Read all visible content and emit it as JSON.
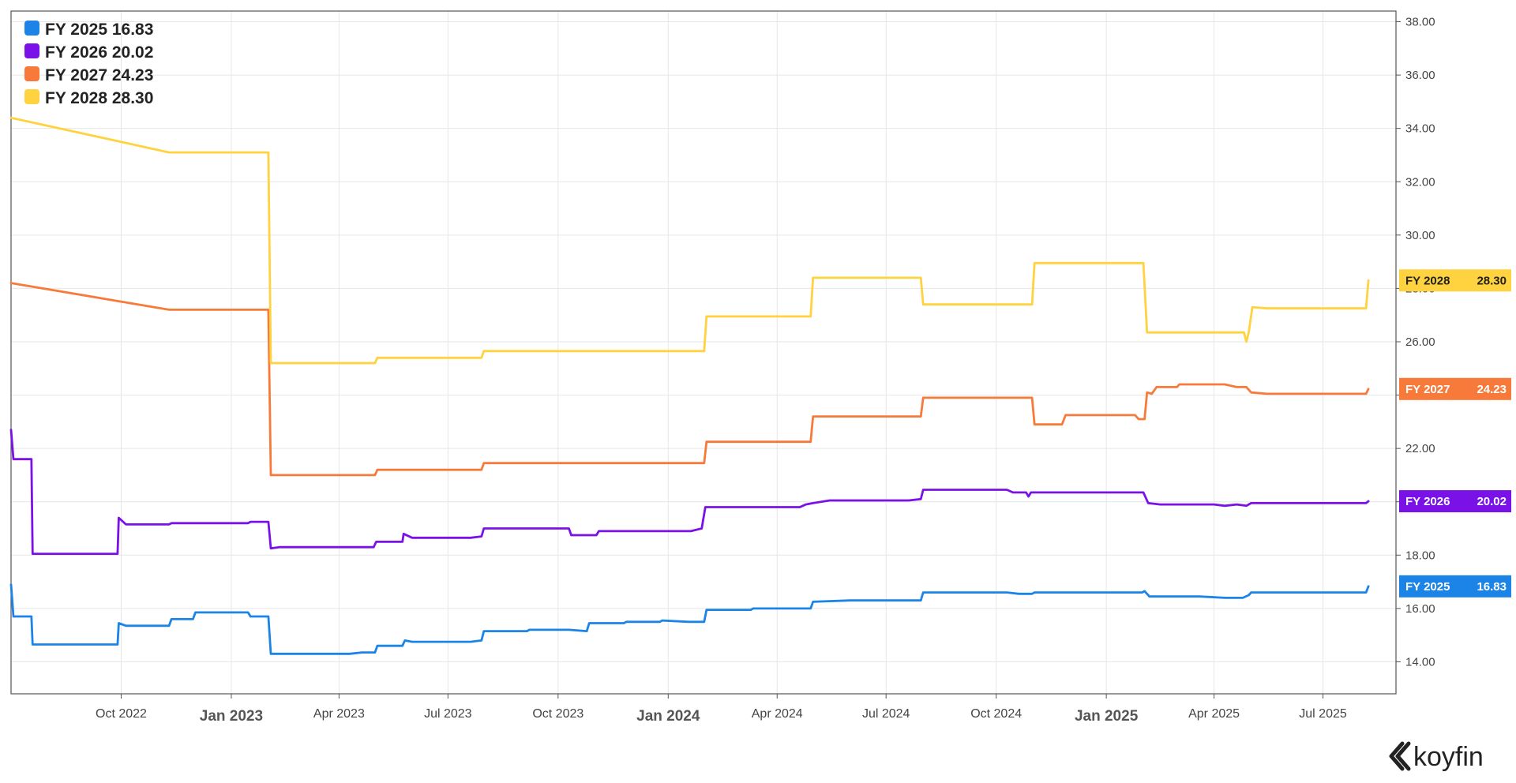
{
  "chart_data": {
    "type": "line",
    "title": "",
    "xlabel": "",
    "ylabel": "",
    "ylim": [
      12.8,
      38.4
    ],
    "xlim": [
      "2022-07-01",
      "2025-08-31"
    ],
    "yticks": [
      "14.00",
      "16.00",
      "18.00",
      "20.00",
      "22.00",
      "24.00",
      "26.00",
      "28.00",
      "30.00",
      "32.00",
      "34.00",
      "36.00",
      "38.00"
    ],
    "xticks": [
      {
        "label": "Oct 2022",
        "date": "2022-10-01",
        "major": false
      },
      {
        "label": "Jan 2023",
        "date": "2023-01-01",
        "major": true
      },
      {
        "label": "Apr 2023",
        "date": "2023-04-01",
        "major": false
      },
      {
        "label": "Jul 2023",
        "date": "2023-07-01",
        "major": false
      },
      {
        "label": "Oct 2023",
        "date": "2023-10-01",
        "major": false
      },
      {
        "label": "Jan 2024",
        "date": "2024-01-01",
        "major": true
      },
      {
        "label": "Apr 2024",
        "date": "2024-04-01",
        "major": false
      },
      {
        "label": "Jul 2024",
        "date": "2024-07-01",
        "major": false
      },
      {
        "label": "Oct 2024",
        "date": "2024-10-01",
        "major": false
      },
      {
        "label": "Jan 2025",
        "date": "2025-01-01",
        "major": true
      },
      {
        "label": "Apr 2025",
        "date": "2025-04-01",
        "major": false
      },
      {
        "label": "Jul 2025",
        "date": "2025-07-01",
        "major": false
      }
    ],
    "grid": true,
    "legend_position": "top-left",
    "series": [
      {
        "name": "FY 2025",
        "last_value": "16.83",
        "legend_label": "FY 2025 16.83",
        "badge_label": "FY 2025",
        "color": "#1b84e6",
        "points": [
          [
            "2022-07-01",
            16.9
          ],
          [
            "2022-07-03",
            15.7
          ],
          [
            "2022-07-18",
            15.7
          ],
          [
            "2022-07-19",
            14.65
          ],
          [
            "2022-09-28",
            14.65
          ],
          [
            "2022-09-29",
            15.45
          ],
          [
            "2022-10-05",
            15.35
          ],
          [
            "2022-11-10",
            15.35
          ],
          [
            "2022-11-12",
            15.6
          ],
          [
            "2022-11-30",
            15.6
          ],
          [
            "2022-12-02",
            15.85
          ],
          [
            "2023-01-15",
            15.85
          ],
          [
            "2023-01-17",
            15.7
          ],
          [
            "2023-02-01",
            15.7
          ],
          [
            "2023-02-03",
            14.3
          ],
          [
            "2023-04-10",
            14.3
          ],
          [
            "2023-04-20",
            14.35
          ],
          [
            "2023-05-01",
            14.35
          ],
          [
            "2023-05-03",
            14.6
          ],
          [
            "2023-05-24",
            14.6
          ],
          [
            "2023-05-26",
            14.8
          ],
          [
            "2023-06-01",
            14.75
          ],
          [
            "2023-07-20",
            14.75
          ],
          [
            "2023-07-29",
            14.8
          ],
          [
            "2023-07-31",
            15.15
          ],
          [
            "2023-09-05",
            15.15
          ],
          [
            "2023-09-07",
            15.2
          ],
          [
            "2023-10-10",
            15.2
          ],
          [
            "2023-10-25",
            15.15
          ],
          [
            "2023-10-27",
            15.45
          ],
          [
            "2023-11-25",
            15.45
          ],
          [
            "2023-11-27",
            15.5
          ],
          [
            "2023-12-25",
            15.5
          ],
          [
            "2023-12-27",
            15.55
          ],
          [
            "2024-01-18",
            15.5
          ],
          [
            "2024-01-31",
            15.5
          ],
          [
            "2024-02-02",
            15.95
          ],
          [
            "2024-03-10",
            15.95
          ],
          [
            "2024-03-12",
            16.0
          ],
          [
            "2024-04-29",
            16.0
          ],
          [
            "2024-05-01",
            16.25
          ],
          [
            "2024-06-01",
            16.3
          ],
          [
            "2024-07-30",
            16.3
          ],
          [
            "2024-08-01",
            16.6
          ],
          [
            "2024-10-10",
            16.6
          ],
          [
            "2024-10-20",
            16.55
          ],
          [
            "2024-10-31",
            16.55
          ],
          [
            "2024-11-02",
            16.6
          ],
          [
            "2025-01-31",
            16.6
          ],
          [
            "2025-02-02",
            16.65
          ],
          [
            "2025-02-06",
            16.45
          ],
          [
            "2025-03-20",
            16.45
          ],
          [
            "2025-04-10",
            16.4
          ],
          [
            "2025-04-25",
            16.4
          ],
          [
            "2025-04-30",
            16.5
          ],
          [
            "2025-05-02",
            16.6
          ],
          [
            "2025-08-06",
            16.6
          ],
          [
            "2025-08-08",
            16.83
          ]
        ]
      },
      {
        "name": "FY 2026",
        "last_value": "20.02",
        "legend_label": "FY 2026 20.02",
        "badge_label": "FY 2026",
        "color": "#7a12e8",
        "points": [
          [
            "2022-07-01",
            22.7
          ],
          [
            "2022-07-03",
            21.6
          ],
          [
            "2022-07-18",
            21.6
          ],
          [
            "2022-07-19",
            18.05
          ],
          [
            "2022-09-28",
            18.05
          ],
          [
            "2022-09-29",
            19.4
          ],
          [
            "2022-10-05",
            19.15
          ],
          [
            "2022-11-10",
            19.15
          ],
          [
            "2022-11-12",
            19.2
          ],
          [
            "2023-01-15",
            19.2
          ],
          [
            "2023-01-17",
            19.25
          ],
          [
            "2023-02-01",
            19.25
          ],
          [
            "2023-02-03",
            18.25
          ],
          [
            "2023-02-10",
            18.3
          ],
          [
            "2023-04-30",
            18.3
          ],
          [
            "2023-05-02",
            18.5
          ],
          [
            "2023-05-24",
            18.5
          ],
          [
            "2023-05-25",
            18.8
          ],
          [
            "2023-06-01",
            18.65
          ],
          [
            "2023-07-20",
            18.65
          ],
          [
            "2023-07-29",
            18.7
          ],
          [
            "2023-07-31",
            19.0
          ],
          [
            "2023-10-10",
            19.0
          ],
          [
            "2023-10-12",
            18.75
          ],
          [
            "2023-11-02",
            18.75
          ],
          [
            "2023-11-04",
            18.9
          ],
          [
            "2024-01-20",
            18.9
          ],
          [
            "2024-01-29",
            19.0
          ],
          [
            "2024-02-01",
            19.8
          ],
          [
            "2024-04-20",
            19.8
          ],
          [
            "2024-04-25",
            19.9
          ],
          [
            "2024-05-01",
            19.95
          ],
          [
            "2024-05-15",
            20.05
          ],
          [
            "2024-07-20",
            20.05
          ],
          [
            "2024-07-30",
            20.1
          ],
          [
            "2024-08-01",
            20.45
          ],
          [
            "2024-10-10",
            20.45
          ],
          [
            "2024-10-15",
            20.35
          ],
          [
            "2024-10-26",
            20.35
          ],
          [
            "2024-10-28",
            20.2
          ],
          [
            "2024-10-30",
            20.35
          ],
          [
            "2025-02-01",
            20.35
          ],
          [
            "2025-02-05",
            19.95
          ],
          [
            "2025-02-15",
            19.9
          ],
          [
            "2025-04-01",
            19.9
          ],
          [
            "2025-04-10",
            19.85
          ],
          [
            "2025-04-20",
            19.9
          ],
          [
            "2025-04-28",
            19.85
          ],
          [
            "2025-05-02",
            19.95
          ],
          [
            "2025-08-06",
            19.95
          ],
          [
            "2025-08-08",
            20.02
          ]
        ]
      },
      {
        "name": "FY 2027",
        "last_value": "24.23",
        "legend_label": "FY 2027 24.23",
        "badge_label": "FY 2027",
        "color": "#f77a3a",
        "points": [
          [
            "2022-07-01",
            28.2
          ],
          [
            "2022-11-10",
            27.2
          ],
          [
            "2023-02-01",
            27.2
          ],
          [
            "2023-02-03",
            21.0
          ],
          [
            "2023-05-01",
            21.0
          ],
          [
            "2023-05-03",
            21.2
          ],
          [
            "2023-07-29",
            21.2
          ],
          [
            "2023-07-31",
            21.45
          ],
          [
            "2024-01-31",
            21.45
          ],
          [
            "2024-02-02",
            22.25
          ],
          [
            "2024-04-29",
            22.25
          ],
          [
            "2024-05-01",
            23.2
          ],
          [
            "2024-07-30",
            23.2
          ],
          [
            "2024-08-01",
            23.9
          ],
          [
            "2024-10-31",
            23.9
          ],
          [
            "2024-11-02",
            22.9
          ],
          [
            "2024-11-25",
            22.9
          ],
          [
            "2024-11-28",
            23.25
          ],
          [
            "2025-01-25",
            23.25
          ],
          [
            "2025-01-28",
            23.1
          ],
          [
            "2025-02-02",
            23.1
          ],
          [
            "2025-02-04",
            24.1
          ],
          [
            "2025-02-08",
            24.05
          ],
          [
            "2025-02-12",
            24.3
          ],
          [
            "2025-03-01",
            24.3
          ],
          [
            "2025-03-03",
            24.4
          ],
          [
            "2025-04-10",
            24.4
          ],
          [
            "2025-04-20",
            24.3
          ],
          [
            "2025-04-28",
            24.3
          ],
          [
            "2025-05-02",
            24.1
          ],
          [
            "2025-05-15",
            24.05
          ],
          [
            "2025-08-06",
            24.05
          ],
          [
            "2025-08-08",
            24.23
          ]
        ]
      },
      {
        "name": "FY 2028",
        "last_value": "28.30",
        "legend_label": "FY 2028 28.30",
        "badge_label": "FY 2028",
        "color": "#ffd23f",
        "points": [
          [
            "2022-07-01",
            34.4
          ],
          [
            "2022-11-10",
            33.1
          ],
          [
            "2023-02-01",
            33.1
          ],
          [
            "2023-02-03",
            25.2
          ],
          [
            "2023-05-01",
            25.2
          ],
          [
            "2023-05-03",
            25.4
          ],
          [
            "2023-07-29",
            25.4
          ],
          [
            "2023-07-31",
            25.65
          ],
          [
            "2024-01-31",
            25.65
          ],
          [
            "2024-02-02",
            26.95
          ],
          [
            "2024-04-29",
            26.95
          ],
          [
            "2024-05-01",
            28.4
          ],
          [
            "2024-07-30",
            28.4
          ],
          [
            "2024-08-01",
            27.4
          ],
          [
            "2024-10-31",
            27.4
          ],
          [
            "2024-11-02",
            28.95
          ],
          [
            "2025-02-01",
            28.95
          ],
          [
            "2025-02-04",
            26.35
          ],
          [
            "2025-04-26",
            26.35
          ],
          [
            "2025-04-28",
            26.0
          ],
          [
            "2025-04-30",
            26.35
          ],
          [
            "2025-05-03",
            27.3
          ],
          [
            "2025-05-15",
            27.25
          ],
          [
            "2025-08-06",
            27.25
          ],
          [
            "2025-08-08",
            28.3
          ]
        ]
      }
    ]
  },
  "branding": {
    "logo_text": "koyfin",
    "logo_icon": "koyfin-logo-icon"
  }
}
